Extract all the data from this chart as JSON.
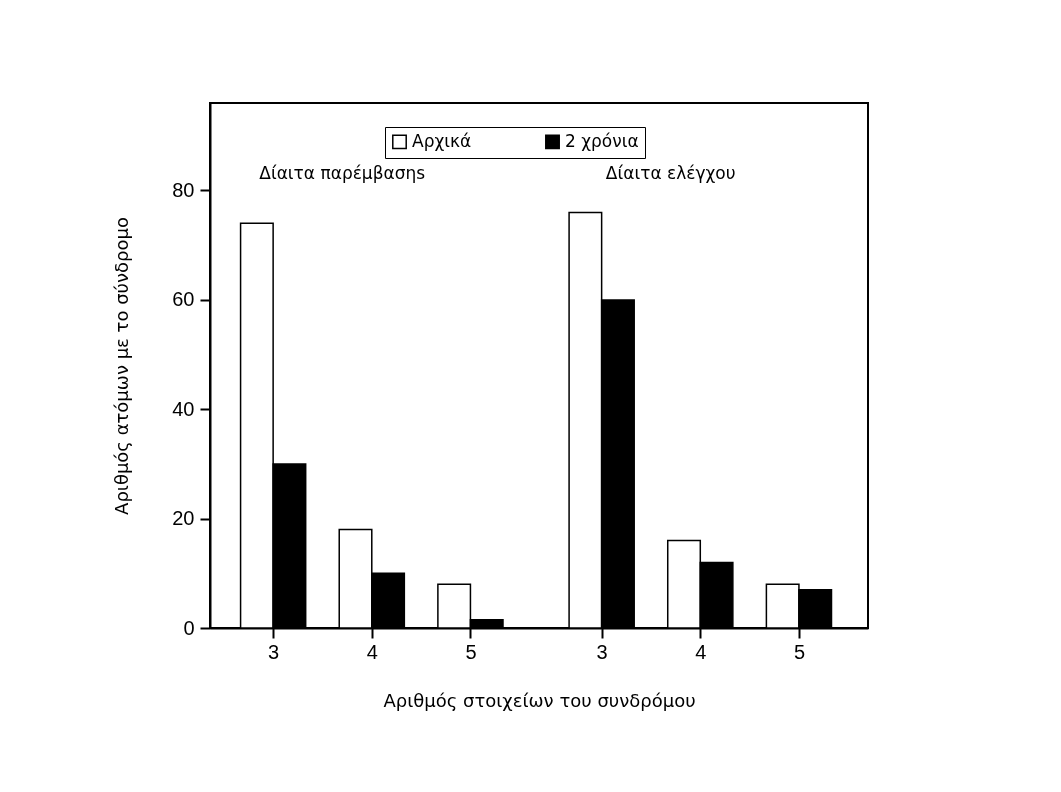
{
  "chart_data": {
    "type": "bar",
    "xlabel": "Αριθμός στοιχείων του συνδρόμου",
    "ylabel": "Αριθμός ατόμων με το σύνδρομο",
    "categories": [
      "3",
      "4",
      "5",
      "3",
      "4",
      "5"
    ],
    "series": [
      {
        "name": "Αρχικά",
        "color": "#ffffff",
        "values": [
          74,
          18,
          8,
          76,
          16,
          8
        ]
      },
      {
        "name": "2 χρόνια",
        "color": "#000000",
        "values": [
          30,
          10,
          1.5,
          60,
          12,
          7
        ]
      }
    ],
    "ylim": [
      0,
      96
    ],
    "yticks": [
      0,
      20,
      40,
      60,
      80
    ],
    "grid": false,
    "legend": "top",
    "annotations": [
      "Δίαιτα παρέμβασηs",
      "Δίαιτα ελέγχου"
    ]
  }
}
